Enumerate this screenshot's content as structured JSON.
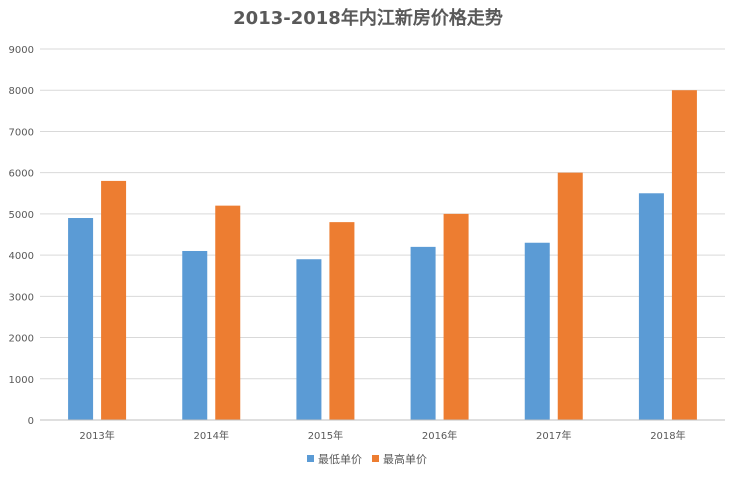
{
  "chart_data": {
    "type": "bar",
    "title": "2013-2018年内江新房价格走势",
    "xlabel": "",
    "ylabel": "",
    "categories": [
      "2013年",
      "2014年",
      "2015年",
      "2016年",
      "2017年",
      "2018年"
    ],
    "series": [
      {
        "name": "最低单价",
        "color": "#5b9bd5",
        "values": [
          4900,
          4100,
          3900,
          4200,
          4300,
          5500
        ]
      },
      {
        "name": "最高单价",
        "color": "#ed7d31",
        "values": [
          5800,
          5200,
          4800,
          5000,
          6000,
          8000
        ]
      }
    ],
    "ylim": [
      0,
      9000
    ],
    "yticks": [
      0,
      1000,
      2000,
      3000,
      4000,
      5000,
      6000,
      7000,
      8000,
      9000
    ],
    "grid": true,
    "legend_position": "bottom"
  }
}
